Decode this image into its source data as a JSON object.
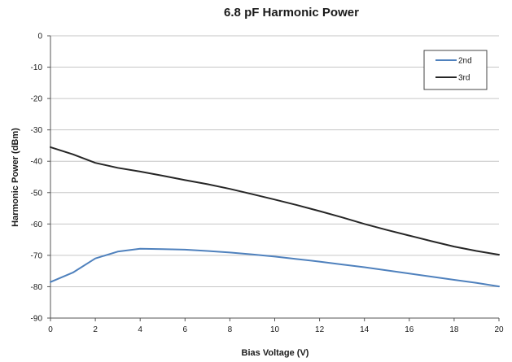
{
  "chart_data": {
    "type": "line",
    "title": "6.8 pF Harmonic Power",
    "xlabel": "Bias Voltage (V)",
    "ylabel": "Harmonic Power (dBm)",
    "xlim": [
      0,
      20
    ],
    "ylim": [
      -90,
      0
    ],
    "x_ticks": [
      0,
      2,
      4,
      6,
      8,
      10,
      12,
      14,
      16,
      18,
      20
    ],
    "y_ticks": [
      0,
      -10,
      -20,
      -30,
      -40,
      -50,
      -60,
      -70,
      -80,
      -90
    ],
    "grid": true,
    "legend_position": "top-right",
    "series": [
      {
        "name": "2nd",
        "color": "#4f81bd",
        "x": [
          0,
          1,
          2,
          3,
          4,
          5,
          6,
          7,
          8,
          9,
          10,
          11,
          12,
          13,
          14,
          15,
          16,
          17,
          18,
          19,
          20
        ],
        "y": [
          -78.5,
          -75.5,
          -71,
          -68.8,
          -67.9,
          -68,
          -68.2,
          -68.6,
          -69.1,
          -69.7,
          -70.4,
          -71.2,
          -72,
          -72.9,
          -73.8,
          -74.8,
          -75.8,
          -76.8,
          -77.8,
          -78.8,
          -79.9
        ]
      },
      {
        "name": "3rd",
        "color": "#262626",
        "x": [
          0,
          1,
          2,
          3,
          4,
          5,
          6,
          7,
          8,
          9,
          10,
          11,
          12,
          13,
          14,
          15,
          16,
          17,
          18,
          19,
          20
        ],
        "y": [
          -35.5,
          -37.8,
          -40.5,
          -42.1,
          -43.3,
          -44.6,
          -46,
          -47.3,
          -48.8,
          -50.5,
          -52.2,
          -54,
          -55.9,
          -57.9,
          -60,
          -61.9,
          -63.7,
          -65.5,
          -67.2,
          -68.6,
          -69.8
        ]
      }
    ]
  }
}
